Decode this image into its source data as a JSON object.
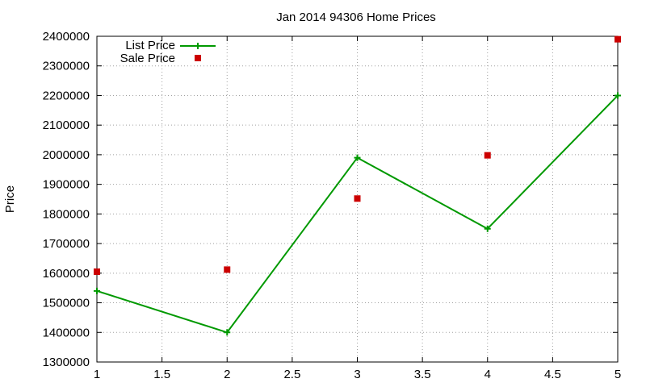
{
  "chart_data": {
    "type": "line",
    "title": "Jan 2014 94306 Home Prices",
    "xlabel": "",
    "ylabel": "Price",
    "xlim": [
      1,
      5
    ],
    "ylim": [
      1300000,
      2400000
    ],
    "x_ticks": [
      1,
      1.5,
      2,
      2.5,
      3,
      3.5,
      4,
      4.5,
      5
    ],
    "x_tick_labels": [
      "1",
      "1.5",
      "2",
      "2.5",
      "3",
      "3.5",
      "4",
      "4.5",
      "5"
    ],
    "y_ticks": [
      1300000,
      1400000,
      1500000,
      1600000,
      1700000,
      1800000,
      1900000,
      2000000,
      2100000,
      2200000,
      2300000,
      2400000
    ],
    "y_tick_labels": [
      "1300000",
      "1400000",
      "1500000",
      "1600000",
      "1700000",
      "1800000",
      "1900000",
      "2000000",
      "2100000",
      "2200000",
      "2300000",
      "2400000"
    ],
    "grid": true,
    "legend_position": "top-left",
    "series": [
      {
        "name": "List Price",
        "style": "linespoints",
        "marker": "plus",
        "color": "#009900",
        "x": [
          1,
          2,
          3,
          4,
          5
        ],
        "y": [
          1540000,
          1400000,
          1990000,
          1750000,
          2200000
        ]
      },
      {
        "name": "Sale Price",
        "style": "points",
        "marker": "square",
        "color": "#cc0000",
        "x": [
          1,
          2,
          3,
          4,
          5
        ],
        "y": [
          1605000,
          1612000,
          1852000,
          1998000,
          2390000
        ]
      }
    ]
  }
}
